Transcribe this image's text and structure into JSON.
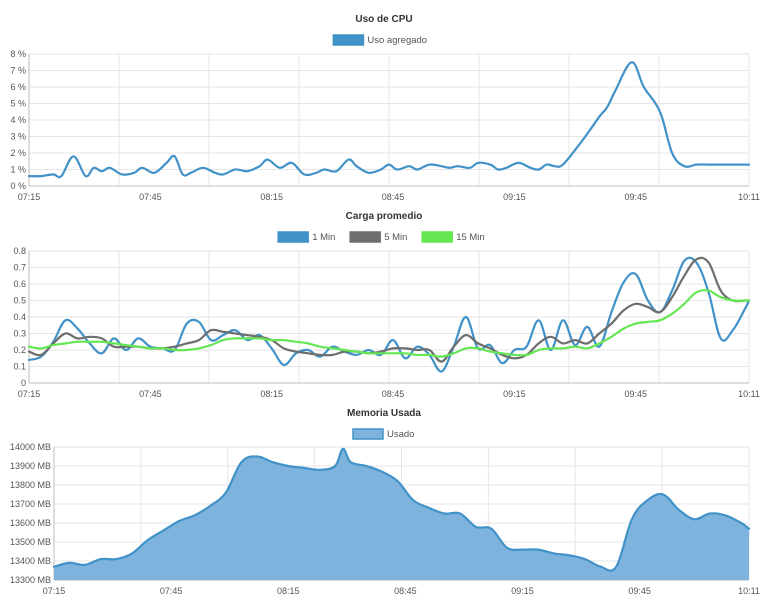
{
  "chart_data": [
    {
      "type": "line",
      "title": "Uso de CPU",
      "xlabel": "",
      "ylabel": "",
      "x_ticks": [
        "07:15",
        "07:45",
        "08:15",
        "08:45",
        "09:15",
        "09:45",
        "10:11"
      ],
      "y_ticks": [
        "0 %",
        "1 %",
        "2 %",
        "3 %",
        "4 %",
        "5 %",
        "6 %",
        "7 %",
        "8 %"
      ],
      "ylim": [
        0,
        8
      ],
      "series": [
        {
          "name": "Uso agregado",
          "color": "#4192c8",
          "fill": false,
          "x": [
            0,
            3,
            6,
            8,
            11,
            14,
            16,
            18,
            20,
            23,
            26,
            28,
            31,
            34,
            36,
            38,
            40,
            43,
            46,
            48,
            51,
            54,
            57,
            59,
            62,
            65,
            68,
            71,
            73,
            76,
            79,
            81,
            84,
            87,
            89,
            91,
            94,
            96,
            99,
            102,
            104,
            106,
            109,
            111,
            114,
            116,
            118,
            121,
            124,
            126,
            128,
            130,
            132,
            136,
            139,
            141,
            143,
            145,
            149,
            152,
            156,
            159,
            162,
            165,
            168,
            171,
            174,
            176,
            178
          ],
          "values": [
            0.6,
            0.6,
            0.7,
            0.6,
            1.8,
            0.6,
            1.1,
            0.9,
            1.1,
            0.7,
            0.8,
            1.1,
            0.8,
            1.4,
            1.8,
            0.7,
            0.8,
            1.1,
            0.8,
            0.7,
            1.0,
            0.9,
            1.2,
            1.6,
            1.1,
            1.4,
            0.7,
            0.8,
            1.0,
            0.9,
            1.6,
            1.2,
            0.8,
            1.0,
            1.3,
            1.0,
            1.2,
            1.0,
            1.3,
            1.2,
            1.1,
            1.2,
            1.1,
            1.4,
            1.3,
            1.0,
            1.1,
            1.4,
            1.1,
            1.0,
            1.3,
            1.2,
            1.3,
            2.5,
            3.5,
            4.2,
            4.8,
            5.8,
            7.5,
            6.0,
            4.5,
            2.0,
            1.2,
            1.3,
            1.3,
            1.3,
            1.3,
            1.3,
            1.3
          ]
        }
      ]
    },
    {
      "type": "line",
      "title": "Carga promedio",
      "xlabel": "",
      "ylabel": "",
      "x_ticks": [
        "07:15",
        "07:45",
        "08:15",
        "08:45",
        "09:15",
        "09:45",
        "10:11"
      ],
      "y_ticks": [
        "0",
        "0.1",
        "0.2",
        "0.3",
        "0.4",
        "0.5",
        "0.6",
        "0.7",
        "0.8"
      ],
      "ylim": [
        0,
        0.8
      ],
      "series": [
        {
          "name": "1 Min",
          "color": "#4192c8",
          "x": [
            0,
            3,
            6,
            9,
            12,
            15,
            18,
            21,
            24,
            27,
            30,
            33,
            36,
            39,
            42,
            45,
            48,
            51,
            54,
            57,
            60,
            63,
            66,
            69,
            72,
            75,
            78,
            81,
            84,
            87,
            90,
            93,
            96,
            99,
            102,
            105,
            108,
            111,
            114,
            117,
            120,
            123,
            126,
            129,
            132,
            135,
            138,
            141,
            144,
            147,
            150,
            153,
            156,
            159,
            162,
            165,
            168,
            171,
            174,
            177,
            178
          ],
          "values": [
            0.14,
            0.16,
            0.25,
            0.38,
            0.33,
            0.24,
            0.18,
            0.27,
            0.2,
            0.27,
            0.22,
            0.21,
            0.2,
            0.36,
            0.37,
            0.26,
            0.29,
            0.32,
            0.26,
            0.29,
            0.21,
            0.11,
            0.18,
            0.2,
            0.16,
            0.22,
            0.19,
            0.17,
            0.2,
            0.17,
            0.26,
            0.15,
            0.22,
            0.17,
            0.07,
            0.22,
            0.4,
            0.21,
            0.23,
            0.12,
            0.2,
            0.22,
            0.38,
            0.2,
            0.38,
            0.23,
            0.34,
            0.22,
            0.43,
            0.61,
            0.66,
            0.5,
            0.43,
            0.56,
            0.74,
            0.73,
            0.55,
            0.27,
            0.32,
            0.45,
            0.5
          ]
        },
        {
          "name": "5 Min",
          "color": "#6e6e6e",
          "x": [
            0,
            3,
            6,
            9,
            12,
            15,
            18,
            21,
            24,
            27,
            30,
            33,
            36,
            39,
            42,
            45,
            48,
            51,
            54,
            57,
            60,
            63,
            66,
            69,
            72,
            75,
            78,
            81,
            84,
            87,
            90,
            93,
            96,
            99,
            102,
            105,
            108,
            111,
            114,
            117,
            120,
            123,
            126,
            129,
            132,
            135,
            138,
            141,
            144,
            147,
            150,
            153,
            156,
            159,
            162,
            165,
            168,
            171,
            174,
            177,
            178
          ],
          "values": [
            0.19,
            0.17,
            0.24,
            0.3,
            0.27,
            0.28,
            0.27,
            0.22,
            0.22,
            0.22,
            0.21,
            0.21,
            0.22,
            0.24,
            0.26,
            0.32,
            0.31,
            0.3,
            0.29,
            0.28,
            0.26,
            0.21,
            0.19,
            0.18,
            0.17,
            0.17,
            0.19,
            0.19,
            0.18,
            0.19,
            0.21,
            0.21,
            0.2,
            0.2,
            0.13,
            0.22,
            0.29,
            0.24,
            0.21,
            0.17,
            0.15,
            0.17,
            0.24,
            0.28,
            0.24,
            0.26,
            0.24,
            0.3,
            0.36,
            0.44,
            0.48,
            0.46,
            0.43,
            0.52,
            0.65,
            0.75,
            0.73,
            0.56,
            0.5,
            0.5,
            0.5
          ]
        },
        {
          "name": "15 Min",
          "color": "#65e653",
          "x": [
            0,
            3,
            6,
            9,
            12,
            15,
            18,
            21,
            24,
            27,
            30,
            33,
            36,
            39,
            42,
            45,
            48,
            51,
            54,
            57,
            60,
            63,
            66,
            69,
            72,
            75,
            78,
            81,
            84,
            87,
            90,
            93,
            96,
            99,
            102,
            105,
            108,
            111,
            114,
            117,
            120,
            123,
            126,
            129,
            132,
            135,
            138,
            141,
            144,
            147,
            150,
            153,
            156,
            159,
            162,
            165,
            168,
            171,
            174,
            177,
            178
          ],
          "values": [
            0.22,
            0.21,
            0.23,
            0.24,
            0.25,
            0.25,
            0.25,
            0.24,
            0.23,
            0.22,
            0.21,
            0.21,
            0.2,
            0.2,
            0.21,
            0.23,
            0.26,
            0.27,
            0.27,
            0.27,
            0.26,
            0.26,
            0.25,
            0.24,
            0.22,
            0.21,
            0.2,
            0.19,
            0.18,
            0.18,
            0.18,
            0.18,
            0.17,
            0.17,
            0.16,
            0.18,
            0.21,
            0.21,
            0.19,
            0.18,
            0.17,
            0.17,
            0.2,
            0.21,
            0.21,
            0.22,
            0.21,
            0.24,
            0.28,
            0.33,
            0.36,
            0.37,
            0.38,
            0.42,
            0.48,
            0.55,
            0.56,
            0.52,
            0.5,
            0.5,
            0.5
          ]
        }
      ]
    },
    {
      "type": "area",
      "title": "Memoria Usada",
      "xlabel": "",
      "ylabel": "",
      "x_ticks": [
        "07:15",
        "07:45",
        "08:15",
        "08:45",
        "09:15",
        "09:45",
        "10:11"
      ],
      "y_ticks": [
        "13300 MB",
        "13400 MB",
        "13500 MB",
        "13600 MB",
        "13700 MB",
        "13800 MB",
        "13900 MB",
        "14000 MB"
      ],
      "ylim": [
        13300,
        14000
      ],
      "series": [
        {
          "name": "Usado",
          "color": "#4192c8",
          "fill": "#7db3dd",
          "x": [
            0,
            4,
            8,
            12,
            16,
            20,
            24,
            28,
            32,
            36,
            40,
            44,
            48,
            52,
            56,
            60,
            64,
            68,
            72,
            74,
            76,
            80,
            84,
            88,
            92,
            96,
            100,
            104,
            108,
            112,
            116,
            120,
            124,
            128,
            132,
            136,
            140,
            144,
            148,
            152,
            156,
            160,
            164,
            168,
            172,
            176,
            178
          ],
          "values": [
            13370,
            13390,
            13380,
            13410,
            13410,
            13440,
            13510,
            13560,
            13610,
            13640,
            13690,
            13760,
            13920,
            13950,
            13920,
            13900,
            13890,
            13880,
            13900,
            13990,
            13920,
            13900,
            13870,
            13820,
            13720,
            13680,
            13650,
            13650,
            13580,
            13570,
            13470,
            13460,
            13460,
            13440,
            13430,
            13410,
            13370,
            13370,
            13620,
            13720,
            13750,
            13670,
            13620,
            13650,
            13640,
            13600,
            13570
          ]
        }
      ]
    }
  ]
}
